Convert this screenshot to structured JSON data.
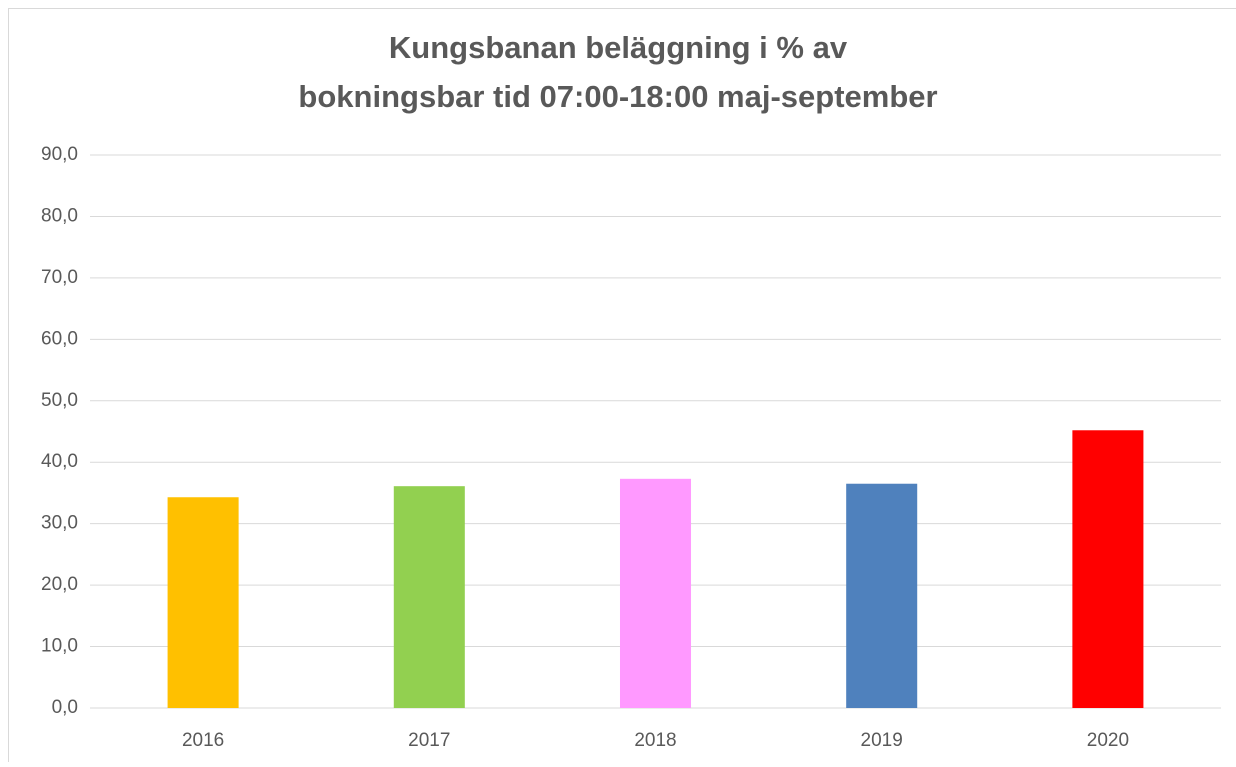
{
  "chart_data": {
    "type": "bar",
    "title": [
      "Kungsbanan beläggning i % av",
      "bokningsbar tid 07:00-18:00 maj-september"
    ],
    "categories": [
      "2016",
      "2017",
      "2018",
      "2019",
      "2020"
    ],
    "values": [
      34.3,
      36.1,
      37.3,
      36.5,
      45.2
    ],
    "colors": [
      "#ffc000",
      "#92d050",
      "#ff99ff",
      "#4f81bd",
      "#ff0000"
    ],
    "ylim": [
      0,
      90
    ],
    "yticks": [
      {
        "value": 0,
        "label": "0,0"
      },
      {
        "value": 10,
        "label": "10,0"
      },
      {
        "value": 20,
        "label": "20,0"
      },
      {
        "value": 30,
        "label": "30,0"
      },
      {
        "value": 40,
        "label": "40,0"
      },
      {
        "value": 50,
        "label": "50,0"
      },
      {
        "value": 60,
        "label": "60,0"
      },
      {
        "value": 70,
        "label": "70,0"
      },
      {
        "value": 80,
        "label": "80,0"
      },
      {
        "value": 90,
        "label": "90,0"
      }
    ],
    "grid": true
  }
}
